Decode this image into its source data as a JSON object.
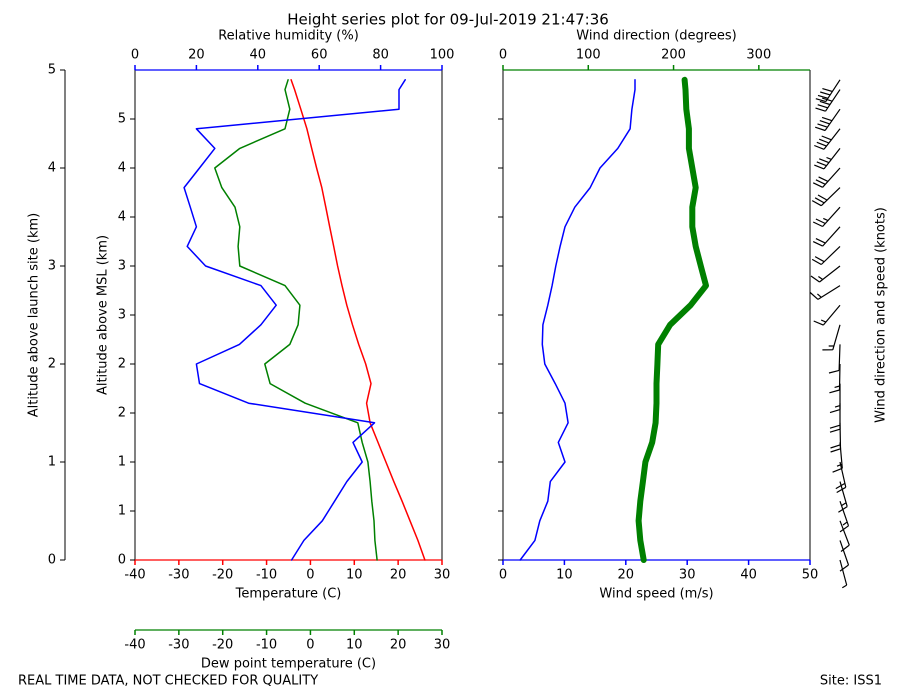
{
  "chart_data": {
    "type": "profile",
    "title": "Height series plot for 09-Jul-2019 21:47:36",
    "footer_left": "REAL TIME DATA, NOT CHECKED FOR QUALITY",
    "footer_right": "Site: ISS1",
    "barb_label": "Wind direction and speed (knots)",
    "altitude": {
      "label": "Altitude above launch site (km)",
      "lim": [
        0,
        5
      ],
      "ticks": [
        0,
        1,
        2,
        3,
        4,
        5
      ],
      "values": [
        0,
        0.2,
        0.4,
        0.6,
        0.8,
        1,
        1.2,
        1.4,
        1.6,
        1.8,
        2,
        2.2,
        2.4,
        2.6,
        2.8,
        3,
        3.2,
        3.4,
        3.6,
        3.8,
        4,
        4.2,
        4.4,
        4.6,
        4.8,
        4.9
      ]
    },
    "altitude_msl": {
      "label": "Altitude above MSL (km)",
      "lim": [
        0.3,
        5.3
      ],
      "ticks": [
        {
          "value": 0.3,
          "label": "0"
        },
        {
          "value": 0.8,
          "label": "1"
        },
        {
          "value": 1.3,
          "label": "1"
        },
        {
          "value": 1.8,
          "label": "2"
        },
        {
          "value": 2.3,
          "label": "2"
        },
        {
          "value": 2.8,
          "label": "3"
        },
        {
          "value": 3.3,
          "label": "3"
        },
        {
          "value": 3.8,
          "label": "4"
        },
        {
          "value": 4.3,
          "label": "4"
        },
        {
          "value": 4.8,
          "label": "5"
        }
      ]
    },
    "axes": {
      "temperature": {
        "label": "Temperature (C)",
        "color": "#ff0000",
        "lim": [
          -40,
          30
        ],
        "ticks": [
          -40,
          -30,
          -20,
          -10,
          0,
          10,
          20,
          30
        ]
      },
      "dewpoint": {
        "label": "Dew point temperature (C)",
        "color": "#008000",
        "lim": [
          -40,
          30
        ],
        "ticks": [
          -40,
          -30,
          -20,
          -10,
          0,
          10,
          20,
          30
        ]
      },
      "rh": {
        "label": "Relative humidity (%)",
        "color": "#0000ff",
        "lim": [
          0,
          100
        ],
        "ticks": [
          0,
          20,
          40,
          60,
          80,
          100
        ]
      },
      "wind_speed": {
        "label": "Wind speed (m/s)",
        "color": "#0000ff",
        "lim": [
          0,
          50
        ],
        "ticks": [
          0,
          10,
          20,
          30,
          40,
          50
        ]
      },
      "wind_direction": {
        "label": "Wind direction (degrees)",
        "color": "#008000",
        "lim": [
          0,
          360
        ],
        "ticks": [
          0,
          100,
          200,
          300
        ]
      }
    },
    "series": [
      {
        "axis": "temperature",
        "color": "#ff0000",
        "width": 1.5,
        "values": [
          26.1,
          24.5,
          22.7,
          20.9,
          19.0,
          17.2,
          15.4,
          13.6,
          12.8,
          13.8,
          12.6,
          11.0,
          9.6,
          8.3,
          7.2,
          6.2,
          5.3,
          4.4,
          3.5,
          2.6,
          1.4,
          0.3,
          -0.8,
          -2.2,
          -3.6,
          -4.4
        ]
      },
      {
        "axis": "dewpoint",
        "color": "#008000",
        "width": 1.5,
        "values": [
          15.2,
          14.7,
          14.5,
          14.0,
          13.6,
          13.1,
          11.8,
          10.8,
          -1.2,
          -9.2,
          -10.4,
          -4.7,
          -2.8,
          -2.4,
          -5.8,
          -16.1,
          -16.5,
          -16.1,
          -17.2,
          -20.2,
          -21.8,
          -16.1,
          -5.8,
          -4.7,
          -5.8,
          -5.1
        ]
      },
      {
        "axis": "rh",
        "color": "#0000ff",
        "width": 1.5,
        "values": [
          51,
          55,
          61,
          65,
          69,
          74,
          71,
          78,
          37,
          21,
          20,
          34,
          41,
          46,
          41,
          23,
          17,
          20,
          18,
          16,
          21,
          26,
          20,
          86,
          86,
          88
        ]
      },
      {
        "axis": "wind_speed",
        "color": "#0000ff",
        "width": 1.5,
        "values": [
          2.8,
          5.2,
          6.0,
          7.3,
          7.7,
          10.1,
          9.0,
          10.6,
          10.1,
          8.5,
          6.8,
          6.4,
          6.5,
          7.3,
          8.0,
          8.6,
          9.3,
          10.1,
          11.7,
          14.2,
          15.8,
          18.7,
          20.7,
          21.0,
          21.5,
          21.5
        ]
      },
      {
        "axis": "wind_direction",
        "color": "#008000",
        "width": 6,
        "values": [
          165,
          161,
          159,
          161,
          164,
          167,
          175,
          179,
          180,
          180,
          181,
          182,
          196,
          220,
          238,
          232,
          226,
          222,
          222,
          226,
          222,
          218,
          218,
          215,
          214,
          213
        ]
      }
    ]
  }
}
